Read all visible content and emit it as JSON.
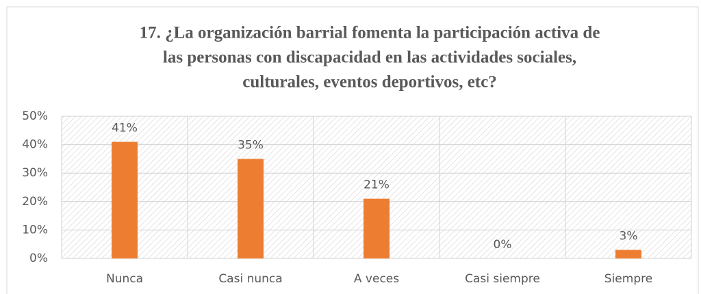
{
  "chart_data": {
    "type": "bar",
    "title": [
      "17. ¿La organización barrial fomenta la participación activa de",
      "las personas con discapacidad en las actividades sociales,",
      "culturales, eventos deportivos, etc?"
    ],
    "categories": [
      "Nunca",
      "Casi nunca",
      "A veces",
      "Casi siempre",
      "Siempre"
    ],
    "values": [
      41,
      35,
      21,
      0,
      3
    ],
    "value_labels": [
      "41%",
      "35%",
      "21%",
      "0%",
      "3%"
    ],
    "color": "#ed7d31",
    "ylim": [
      0,
      50
    ],
    "yticks": [
      {
        "value": 0,
        "label": "0%"
      },
      {
        "value": 10,
        "label": "10%"
      },
      {
        "value": 20,
        "label": "20%"
      },
      {
        "value": 30,
        "label": "30%"
      },
      {
        "value": 40,
        "label": "40%"
      },
      {
        "value": 50,
        "label": "50%"
      }
    ],
    "grid": true
  }
}
